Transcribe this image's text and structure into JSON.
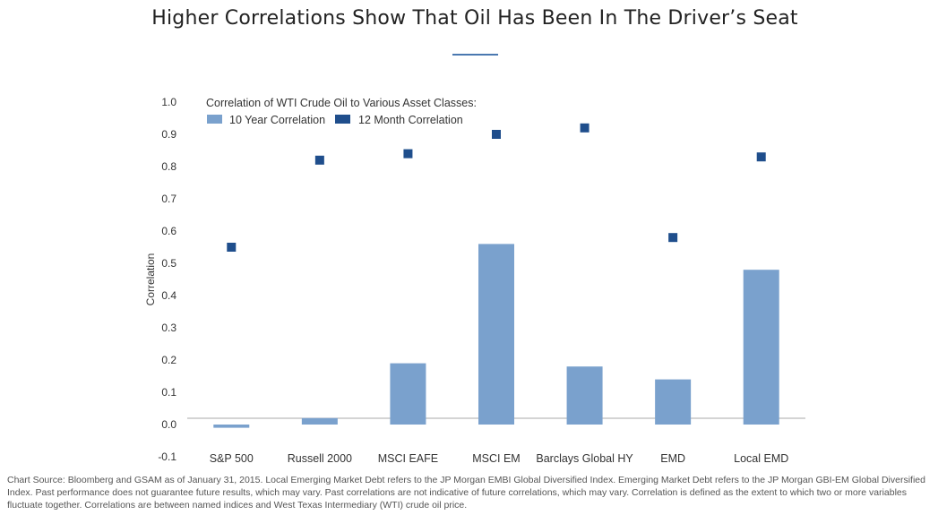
{
  "page": {
    "title": "Higher Correlations Show That Oil Has Been In The Driver’s Seat",
    "footnote": "Chart Source: Bloomberg and GSAM as of January 31, 2015. Local Emerging Market Debt refers to the JP Morgan EMBI Global Diversified Index. Emerging Market Debt refers to the JP Morgan GBI-EM Global Diversified Index. Past performance does not guarantee future results, which may vary. Past correlations are not indicative of future correlations, which may vary. Correlation is defined as the extent to which two or more variables fluctuate together. Correlations are between named indices and West Texas Intermediary (WTI) crude oil price."
  },
  "chart_data": {
    "type": "bar",
    "title": "Correlation of WTI Crude Oil to Various Asset Classes:",
    "xlabel": "",
    "ylabel": "Correlation",
    "ylim": [
      -0.1,
      1.0
    ],
    "yticks": [
      "1.0",
      "0.9",
      "0.8",
      "0.7",
      "0.6",
      "0.5",
      "0.4",
      "0.3",
      "0.2",
      "0.1",
      "0.0",
      "-0.1"
    ],
    "categories": [
      "S&P 500",
      "Russell 2000",
      "MSCI EAFE",
      "MSCI EM",
      "Barclays Global HY",
      "EMD",
      "Local EMD"
    ],
    "series": [
      {
        "name": "10 Year Correlation",
        "mark": "bar",
        "color": "#7aa1cd",
        "values": [
          -0.01,
          0.02,
          0.19,
          0.56,
          0.18,
          0.14,
          0.48
        ]
      },
      {
        "name": "12 Month Correlation",
        "mark": "square",
        "color": "#1f4e8c",
        "values": [
          0.55,
          0.82,
          0.84,
          0.9,
          0.92,
          0.58,
          0.83
        ]
      }
    ],
    "legend_position": "top-left",
    "grid": false
  }
}
